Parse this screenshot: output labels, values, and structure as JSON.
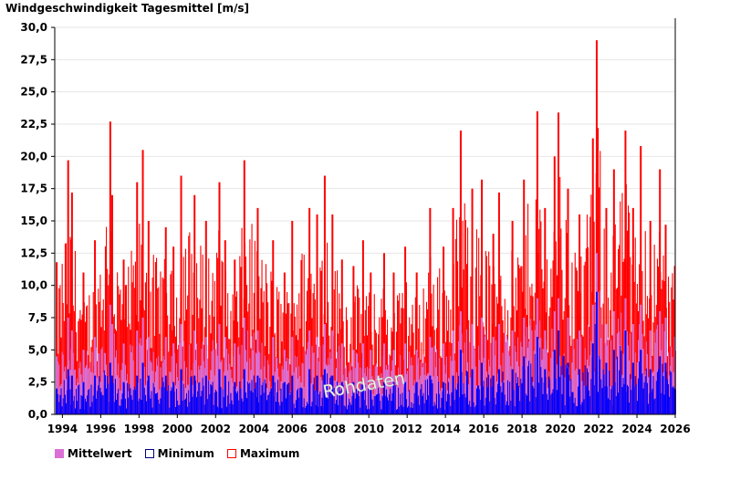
{
  "chart_data": {
    "type": "bar",
    "title": "Windgeschwindigkeit Tagesmittel [m/s]",
    "watermark": "Rohdaten",
    "ylim": [
      0,
      30
    ],
    "xlim": [
      1993.6,
      2026.0
    ],
    "y_ticks": [
      {
        "value": 0,
        "label": "0,0"
      },
      {
        "value": 2.5,
        "label": "2,5"
      },
      {
        "value": 5,
        "label": "5,0"
      },
      {
        "value": 7.5,
        "label": "7,5"
      },
      {
        "value": 10,
        "label": "10,0"
      },
      {
        "value": 12.5,
        "label": "12,5"
      },
      {
        "value": 15,
        "label": "15,0"
      },
      {
        "value": 17.5,
        "label": "17,5"
      },
      {
        "value": 20,
        "label": "20,0"
      },
      {
        "value": 22.5,
        "label": "22,5"
      },
      {
        "value": 25,
        "label": "25,0"
      },
      {
        "value": 27.5,
        "label": "27,5"
      },
      {
        "value": 30,
        "label": "30,0"
      }
    ],
    "x_ticks": [
      {
        "value": 1994,
        "label": "1994"
      },
      {
        "value": 1996,
        "label": "1996"
      },
      {
        "value": 1998,
        "label": "1998"
      },
      {
        "value": 2000,
        "label": "2000"
      },
      {
        "value": 2002,
        "label": "2002"
      },
      {
        "value": 2004,
        "label": "2004"
      },
      {
        "value": 2006,
        "label": "2006"
      },
      {
        "value": 2008,
        "label": "2008"
      },
      {
        "value": 2010,
        "label": "2010"
      },
      {
        "value": 2012,
        "label": "2012"
      },
      {
        "value": 2014,
        "label": "2014"
      },
      {
        "value": 2016,
        "label": "2016"
      },
      {
        "value": 2018,
        "label": "2018"
      },
      {
        "value": 2020,
        "label": "2020"
      },
      {
        "value": 2022,
        "label": "2022"
      },
      {
        "value": 2024,
        "label": "2024"
      },
      {
        "value": 2026,
        "label": "2026"
      }
    ],
    "grid": true,
    "legend_position": "bottom-left",
    "series": [
      {
        "name": "Mittelwert",
        "color": "#da70d6",
        "border": "#da70d6"
      },
      {
        "name": "Minimum",
        "color": "#0000ff",
        "border": "#000080"
      },
      {
        "name": "Maximum",
        "color": "#ff0000",
        "border": "#ff0000"
      }
    ],
    "x": [
      1993.7,
      1994.3,
      1994.5,
      1995.1,
      1995.7,
      1996.5,
      1996.6,
      1997.2,
      1997.9,
      1998.2,
      1998.5,
      1999.4,
      1999.8,
      2000.2,
      2000.9,
      2001.5,
      2002.2,
      2002.5,
      2003.0,
      2003.5,
      2004.2,
      2005.0,
      2005.6,
      2006.0,
      2006.9,
      2007.3,
      2007.7,
      2008.1,
      2008.6,
      2009.2,
      2009.7,
      2010.1,
      2010.8,
      2011.3,
      2011.9,
      2012.5,
      2013.2,
      2013.9,
      2014.4,
      2014.8,
      2015.4,
      2015.9,
      2016.5,
      2016.8,
      2017.5,
      2018.1,
      2018.8,
      2019.2,
      2019.7,
      2019.9,
      2020.4,
      2021.0,
      2021.7,
      2021.9,
      2022.4,
      2022.8,
      2023.4,
      2023.8,
      2024.2,
      2024.7,
      2025.2,
      2025.5
    ],
    "maximum": [
      11.8,
      19.7,
      17.2,
      11.0,
      13.5,
      22.7,
      17.0,
      12.0,
      18.0,
      20.5,
      15.0,
      14.5,
      13.0,
      18.5,
      17.0,
      15.0,
      18.0,
      13.5,
      12.0,
      19.7,
      16.0,
      13.5,
      11.0,
      15.0,
      16.0,
      15.5,
      18.5,
      15.5,
      12.0,
      11.5,
      13.5,
      11.0,
      12.5,
      11.0,
      13.0,
      11.0,
      16.0,
      13.0,
      16.0,
      22.0,
      17.5,
      18.2,
      14.0,
      17.2,
      15.0,
      18.2,
      23.5,
      16.0,
      20.0,
      23.4,
      17.5,
      15.5,
      21.4,
      29.0,
      16.0,
      19.0,
      22.0,
      16.0,
      20.8,
      15.0,
      19.0,
      14.7
    ],
    "mittelwert": [
      4.5,
      7.5,
      6.5,
      5.0,
      6.0,
      8.5,
      7.0,
      5.5,
      6.5,
      7.5,
      6.0,
      6.0,
      5.5,
      7.0,
      6.5,
      6.0,
      7.0,
      6.0,
      5.5,
      7.5,
      6.5,
      6.0,
      5.0,
      6.0,
      6.5,
      6.0,
      7.0,
      6.5,
      5.5,
      5.0,
      5.5,
      5.0,
      5.5,
      5.0,
      5.5,
      5.0,
      6.0,
      5.5,
      6.5,
      8.0,
      7.0,
      7.5,
      6.0,
      7.0,
      6.5,
      7.5,
      9.0,
      6.5,
      8.0,
      9.0,
      7.5,
      6.5,
      8.5,
      12.5,
      7.0,
      8.0,
      9.0,
      7.0,
      8.5,
      6.5,
      8.0,
      7.5
    ],
    "minimum": [
      2.0,
      3.5,
      3.0,
      2.5,
      3.0,
      4.0,
      3.0,
      2.5,
      3.0,
      4.0,
      3.0,
      3.0,
      2.5,
      3.5,
      3.0,
      3.0,
      3.5,
      3.0,
      2.5,
      3.5,
      3.0,
      3.0,
      2.5,
      3.0,
      3.5,
      3.0,
      3.5,
      3.0,
      2.5,
      2.5,
      2.5,
      2.0,
      2.5,
      2.5,
      2.5,
      2.5,
      3.0,
      2.5,
      3.0,
      5.0,
      3.5,
      4.0,
      3.0,
      3.5,
      3.5,
      4.5,
      6.0,
      3.5,
      5.0,
      6.5,
      4.0,
      3.5,
      5.5,
      9.5,
      4.0,
      5.0,
      6.5,
      4.0,
      5.0,
      3.5,
      4.5,
      4.0
    ]
  }
}
